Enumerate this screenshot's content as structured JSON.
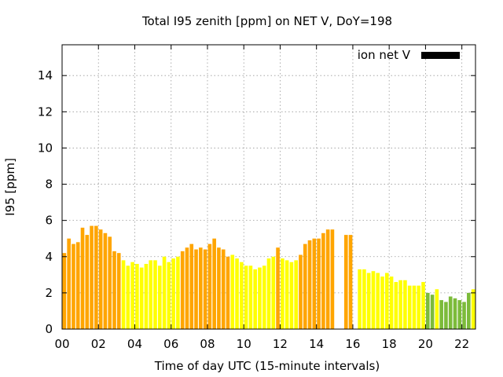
{
  "chart_data": {
    "type": "bar",
    "title": "Total I95 zenith [ppm] on NET V, DoY=198",
    "xlabel": "Time of day UTC (15-minute intervals)",
    "ylabel": "I95 [ppm]",
    "xlim": [
      0,
      22.75
    ],
    "ylim": [
      0,
      15.7
    ],
    "yticks": [
      0,
      2,
      4,
      6,
      8,
      10,
      12,
      14
    ],
    "xticks": [
      "00",
      "02",
      "04",
      "06",
      "08",
      "10",
      "12",
      "14",
      "16",
      "18",
      "20",
      "22"
    ],
    "grid": true,
    "legend": {
      "label": "ion net V",
      "color": "#000000",
      "placement": "top-right"
    },
    "bar_width_hours": 0.2,
    "colors": {
      "orange": "#ffa500",
      "yellow": "#ffff00",
      "green": "#7cbb3a"
    },
    "bars": [
      {
        "t": 0.125,
        "v": 4.2,
        "c": "orange"
      },
      {
        "t": 0.375,
        "v": 5.0,
        "c": "orange"
      },
      {
        "t": 0.625,
        "v": 4.7,
        "c": "orange"
      },
      {
        "t": 0.875,
        "v": 4.8,
        "c": "orange"
      },
      {
        "t": 1.125,
        "v": 5.6,
        "c": "orange"
      },
      {
        "t": 1.375,
        "v": 5.2,
        "c": "orange"
      },
      {
        "t": 1.625,
        "v": 5.7,
        "c": "orange"
      },
      {
        "t": 1.875,
        "v": 5.7,
        "c": "orange"
      },
      {
        "t": 2.125,
        "v": 5.5,
        "c": "orange"
      },
      {
        "t": 2.375,
        "v": 5.3,
        "c": "orange"
      },
      {
        "t": 2.625,
        "v": 5.1,
        "c": "orange"
      },
      {
        "t": 2.875,
        "v": 4.3,
        "c": "orange"
      },
      {
        "t": 3.125,
        "v": 4.2,
        "c": "orange"
      },
      {
        "t": 3.375,
        "v": 3.8,
        "c": "yellow"
      },
      {
        "t": 3.625,
        "v": 3.5,
        "c": "yellow"
      },
      {
        "t": 3.875,
        "v": 3.7,
        "c": "yellow"
      },
      {
        "t": 4.125,
        "v": 3.6,
        "c": "yellow"
      },
      {
        "t": 4.375,
        "v": 3.4,
        "c": "yellow"
      },
      {
        "t": 4.625,
        "v": 3.6,
        "c": "yellow"
      },
      {
        "t": 4.875,
        "v": 3.8,
        "c": "yellow"
      },
      {
        "t": 5.125,
        "v": 3.8,
        "c": "yellow"
      },
      {
        "t": 5.375,
        "v": 3.5,
        "c": "yellow"
      },
      {
        "t": 5.625,
        "v": 4.0,
        "c": "yellow"
      },
      {
        "t": 5.875,
        "v": 3.7,
        "c": "yellow"
      },
      {
        "t": 6.125,
        "v": 3.9,
        "c": "yellow"
      },
      {
        "t": 6.375,
        "v": 4.0,
        "c": "yellow"
      },
      {
        "t": 6.625,
        "v": 4.3,
        "c": "orange"
      },
      {
        "t": 6.875,
        "v": 4.5,
        "c": "orange"
      },
      {
        "t": 7.125,
        "v": 4.7,
        "c": "orange"
      },
      {
        "t": 7.375,
        "v": 4.4,
        "c": "orange"
      },
      {
        "t": 7.625,
        "v": 4.5,
        "c": "orange"
      },
      {
        "t": 7.875,
        "v": 4.4,
        "c": "orange"
      },
      {
        "t": 8.125,
        "v": 4.7,
        "c": "orange"
      },
      {
        "t": 8.375,
        "v": 5.0,
        "c": "orange"
      },
      {
        "t": 8.625,
        "v": 4.5,
        "c": "orange"
      },
      {
        "t": 8.875,
        "v": 4.4,
        "c": "orange"
      },
      {
        "t": 9.125,
        "v": 4.0,
        "c": "orange"
      },
      {
        "t": 9.375,
        "v": 4.1,
        "c": "yellow"
      },
      {
        "t": 9.625,
        "v": 3.9,
        "c": "yellow"
      },
      {
        "t": 9.875,
        "v": 3.7,
        "c": "yellow"
      },
      {
        "t": 10.125,
        "v": 3.5,
        "c": "yellow"
      },
      {
        "t": 10.375,
        "v": 3.5,
        "c": "yellow"
      },
      {
        "t": 10.625,
        "v": 3.3,
        "c": "yellow"
      },
      {
        "t": 10.875,
        "v": 3.4,
        "c": "yellow"
      },
      {
        "t": 11.125,
        "v": 3.5,
        "c": "yellow"
      },
      {
        "t": 11.375,
        "v": 3.9,
        "c": "yellow"
      },
      {
        "t": 11.625,
        "v": 4.0,
        "c": "yellow"
      },
      {
        "t": 11.875,
        "v": 4.5,
        "c": "orange"
      },
      {
        "t": 12.125,
        "v": 3.9,
        "c": "yellow"
      },
      {
        "t": 12.375,
        "v": 3.8,
        "c": "yellow"
      },
      {
        "t": 12.625,
        "v": 3.7,
        "c": "yellow"
      },
      {
        "t": 12.875,
        "v": 3.8,
        "c": "yellow"
      },
      {
        "t": 13.125,
        "v": 4.1,
        "c": "orange"
      },
      {
        "t": 13.375,
        "v": 4.7,
        "c": "orange"
      },
      {
        "t": 13.625,
        "v": 4.9,
        "c": "orange"
      },
      {
        "t": 13.875,
        "v": 5.0,
        "c": "orange"
      },
      {
        "t": 14.125,
        "v": 5.0,
        "c": "orange"
      },
      {
        "t": 14.375,
        "v": 5.3,
        "c": "orange"
      },
      {
        "t": 14.625,
        "v": 5.5,
        "c": "orange"
      },
      {
        "t": 14.875,
        "v": 5.5,
        "c": "orange"
      },
      {
        "t": 15.625,
        "v": 5.2,
        "c": "orange"
      },
      {
        "t": 15.875,
        "v": 5.2,
        "c": "orange"
      },
      {
        "t": 16.375,
        "v": 3.3,
        "c": "yellow"
      },
      {
        "t": 16.625,
        "v": 3.3,
        "c": "yellow"
      },
      {
        "t": 16.875,
        "v": 3.1,
        "c": "yellow"
      },
      {
        "t": 17.125,
        "v": 3.2,
        "c": "yellow"
      },
      {
        "t": 17.375,
        "v": 3.1,
        "c": "yellow"
      },
      {
        "t": 17.625,
        "v": 2.9,
        "c": "yellow"
      },
      {
        "t": 17.875,
        "v": 3.1,
        "c": "yellow"
      },
      {
        "t": 18.125,
        "v": 2.9,
        "c": "yellow"
      },
      {
        "t": 18.375,
        "v": 2.6,
        "c": "yellow"
      },
      {
        "t": 18.625,
        "v": 2.7,
        "c": "yellow"
      },
      {
        "t": 18.875,
        "v": 2.7,
        "c": "yellow"
      },
      {
        "t": 19.125,
        "v": 2.4,
        "c": "yellow"
      },
      {
        "t": 19.375,
        "v": 2.4,
        "c": "yellow"
      },
      {
        "t": 19.625,
        "v": 2.4,
        "c": "yellow"
      },
      {
        "t": 19.875,
        "v": 2.6,
        "c": "yellow"
      },
      {
        "t": 20.125,
        "v": 2.0,
        "c": "green"
      },
      {
        "t": 20.375,
        "v": 1.9,
        "c": "green"
      },
      {
        "t": 20.625,
        "v": 2.2,
        "c": "yellow"
      },
      {
        "t": 20.875,
        "v": 1.6,
        "c": "green"
      },
      {
        "t": 21.125,
        "v": 1.5,
        "c": "green"
      },
      {
        "t": 21.375,
        "v": 1.8,
        "c": "green"
      },
      {
        "t": 21.625,
        "v": 1.7,
        "c": "green"
      },
      {
        "t": 21.875,
        "v": 1.6,
        "c": "green"
      },
      {
        "t": 22.125,
        "v": 1.5,
        "c": "green"
      },
      {
        "t": 22.375,
        "v": 2.0,
        "c": "green"
      },
      {
        "t": 22.625,
        "v": 2.2,
        "c": "yellow"
      }
    ]
  }
}
